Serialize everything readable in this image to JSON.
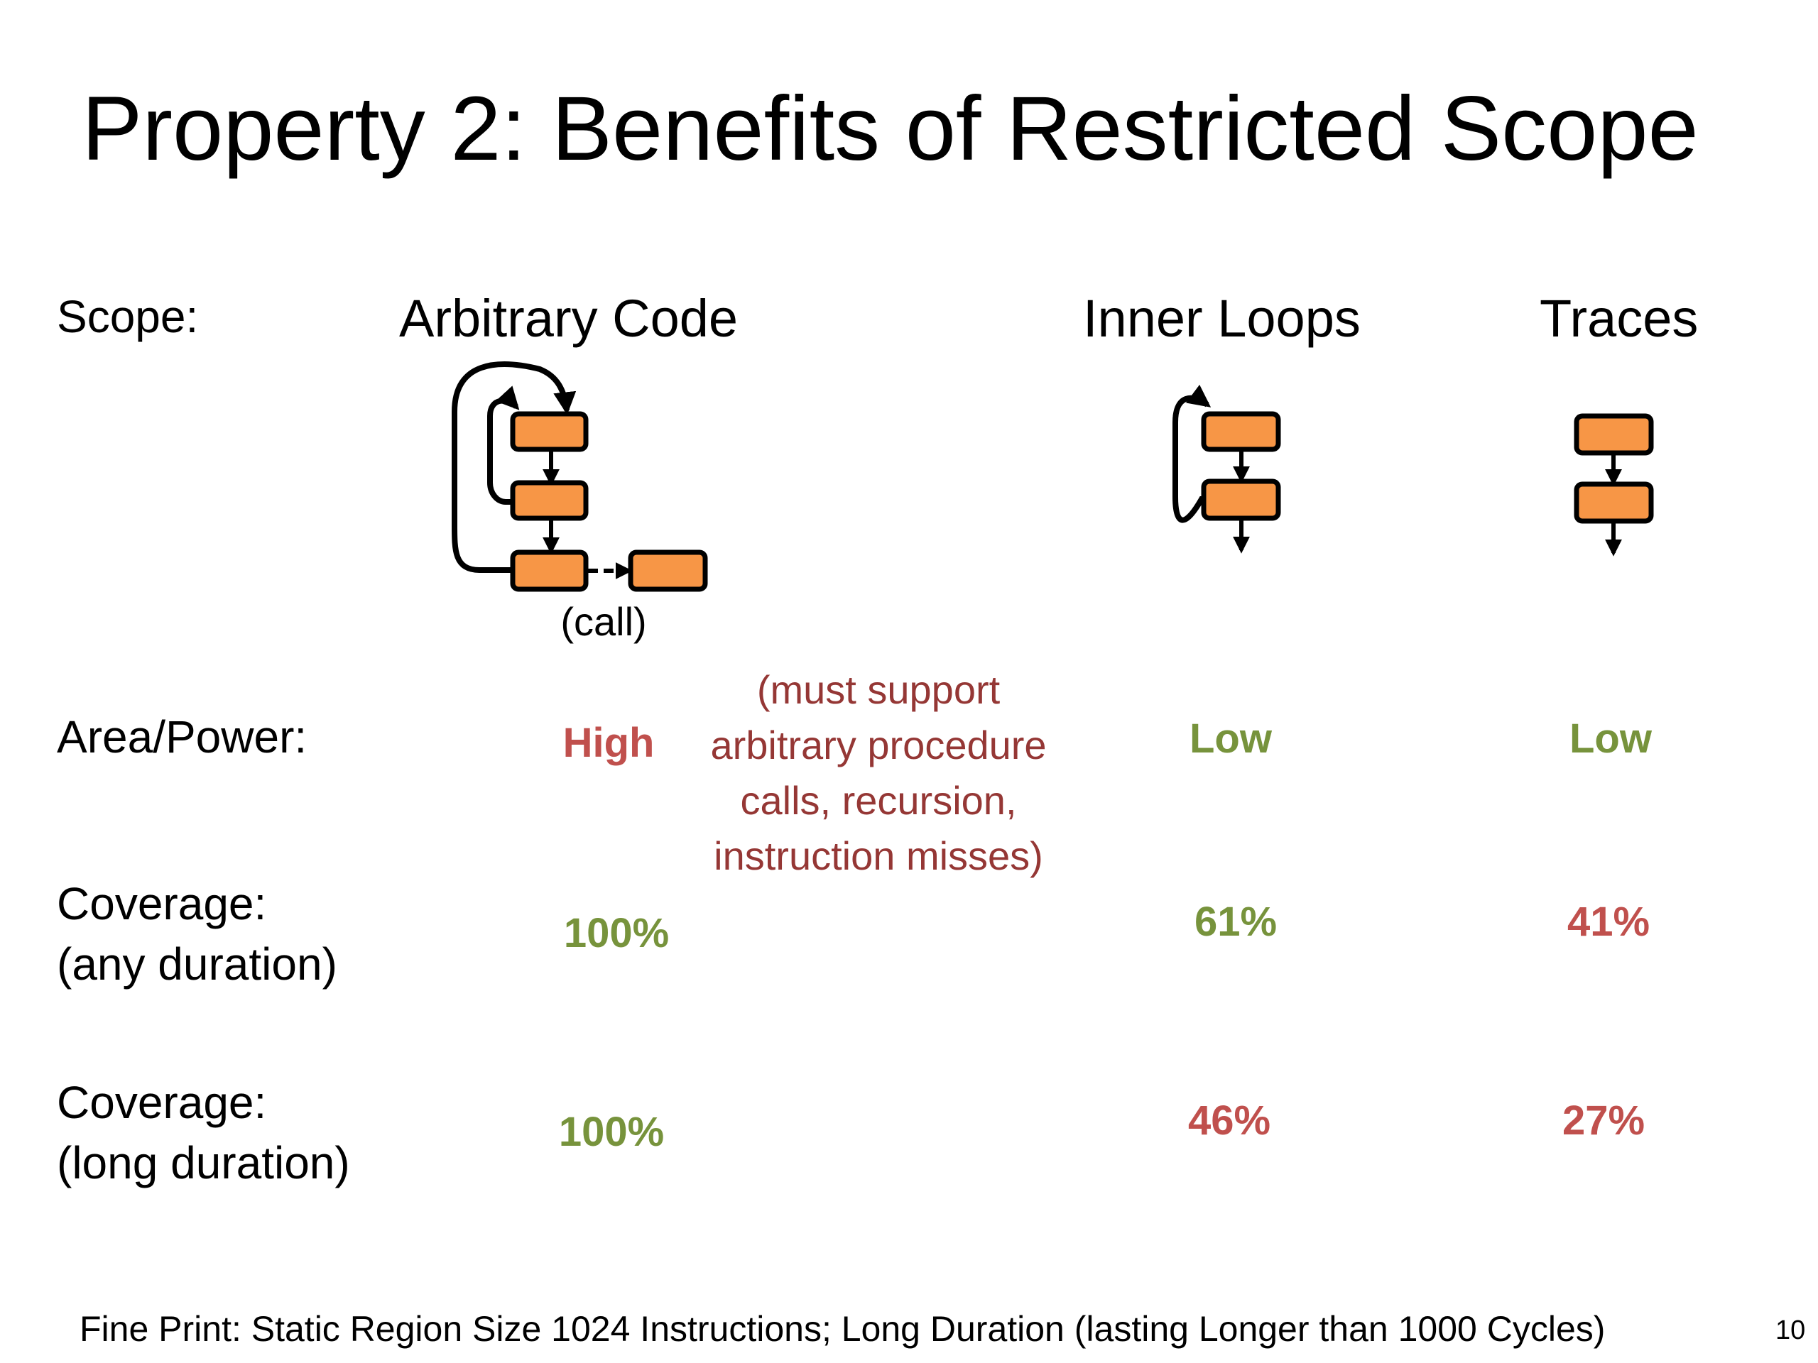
{
  "slide": {
    "title": "Property 2: Benefits of Restricted Scope",
    "page_number": "10",
    "fine_print": "Fine Print: Static Region Size 1024 Instructions; Long Duration (lasting Longer than 1000 Cycles)"
  },
  "rows": {
    "scope_label": "Scope:",
    "area_power_label": "Area/Power:",
    "coverage_any_line1": "Coverage:",
    "coverage_any_line2": "(any duration)",
    "coverage_long_line1": "Coverage:",
    "coverage_long_line2": "(long duration)"
  },
  "columns": {
    "arbitrary": {
      "header": "Arbitrary Code",
      "call_label": "(call)",
      "area_power": "High",
      "coverage_any": "100%",
      "coverage_long": "100%"
    },
    "inner_loops": {
      "header": "Inner Loops",
      "area_power": "Low",
      "coverage_any": "61%",
      "coverage_long": "46%"
    },
    "traces": {
      "header": "Traces",
      "area_power": "Low",
      "coverage_any": "41%",
      "coverage_long": "27%"
    }
  },
  "note_lines": [
    "(must support",
    "arbitrary procedure",
    "calls, recursion,",
    "instruction misses)"
  ],
  "colors": {
    "good": "#77933C",
    "bad": "#C0504D",
    "note": "#953735",
    "block_fill": "#F79646",
    "block_stroke": "#000000"
  }
}
